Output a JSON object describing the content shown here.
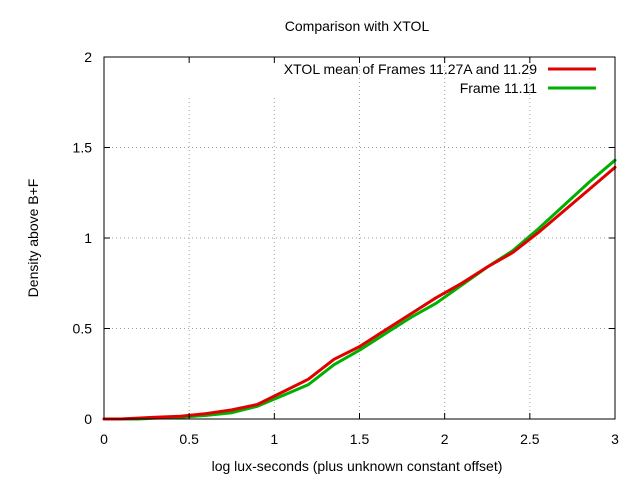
{
  "chart_data": {
    "type": "line",
    "title": "Comparison with XTOL",
    "xlabel": "log lux-seconds (plus unknown constant offset)",
    "ylabel": "Density above B+F",
    "xlim": [
      0,
      3
    ],
    "ylim": [
      0,
      2
    ],
    "x_ticks": [
      "0",
      "0.5",
      "1",
      "1.5",
      "2",
      "2.5",
      "3"
    ],
    "y_ticks": [
      "0",
      "0.5",
      "1",
      "1.5",
      "2"
    ],
    "grid": true,
    "legend_position": "top-right",
    "series": [
      {
        "name": "XTOL mean of Frames 11.27A and 11.29",
        "color": "#e00000",
        "x": [
          0,
          0.1,
          0.2,
          0.3,
          0.45,
          0.6,
          0.75,
          0.9,
          1.05,
          1.2,
          1.35,
          1.5,
          1.65,
          1.8,
          1.95,
          2.1,
          2.25,
          2.4,
          2.55,
          2.7,
          2.85,
          3
        ],
        "y": [
          0,
          0,
          0.005,
          0.01,
          0.015,
          0.03,
          0.05,
          0.08,
          0.15,
          0.22,
          0.33,
          0.4,
          0.49,
          0.58,
          0.67,
          0.75,
          0.84,
          0.92,
          1.03,
          1.15,
          1.27,
          1.39
        ]
      },
      {
        "name": "Frame 11.11",
        "color": "#00b000",
        "x": [
          0,
          0.1,
          0.2,
          0.3,
          0.45,
          0.6,
          0.75,
          0.9,
          1.05,
          1.2,
          1.35,
          1.5,
          1.65,
          1.8,
          1.95,
          2.1,
          2.25,
          2.4,
          2.55,
          2.7,
          2.85,
          3
        ],
        "y": [
          0,
          0,
          0,
          0.005,
          0.01,
          0.02,
          0.035,
          0.07,
          0.13,
          0.19,
          0.3,
          0.38,
          0.47,
          0.56,
          0.64,
          0.74,
          0.84,
          0.93,
          1.05,
          1.18,
          1.31,
          1.43
        ]
      }
    ]
  }
}
